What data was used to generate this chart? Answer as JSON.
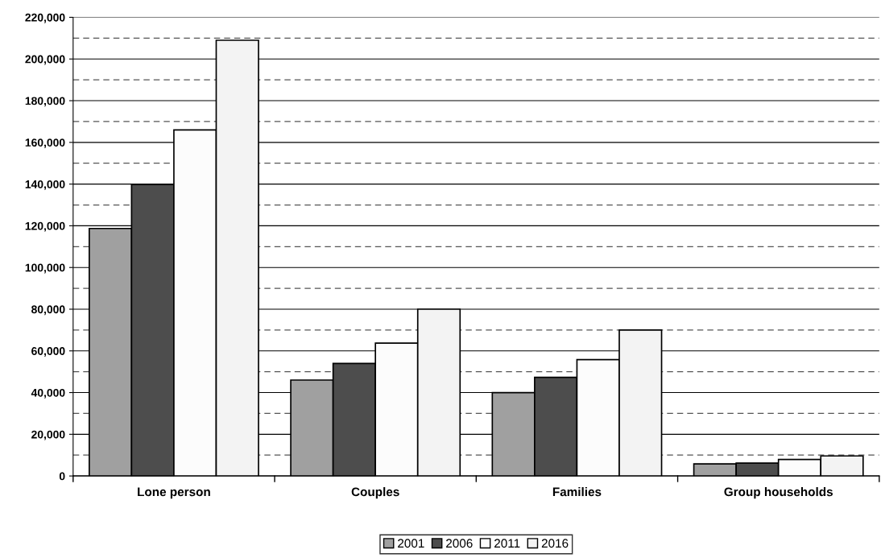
{
  "chart_data": {
    "type": "bar",
    "categories": [
      "Lone person",
      "Couples",
      "Families",
      "Group households"
    ],
    "series": [
      {
        "name": "2001",
        "color": "#a0a0a0",
        "values": [
          118700,
          46000,
          40000,
          5800
        ]
      },
      {
        "name": "2006",
        "color": "#4d4d4d",
        "values": [
          139800,
          54000,
          47300,
          6200
        ]
      },
      {
        "name": "2011",
        "color": "#fcfcfc",
        "values": [
          166000,
          63700,
          55800,
          7900
        ]
      },
      {
        "name": "2016",
        "color": "#f3f3f3",
        "values": [
          209000,
          80000,
          70000,
          9600
        ]
      }
    ],
    "ylim": [
      0,
      220000
    ],
    "yticks": [
      {
        "value": 0,
        "label": "0"
      },
      {
        "value": 20000,
        "label": "20,000"
      },
      {
        "value": 40000,
        "label": "40,000"
      },
      {
        "value": 60000,
        "label": "60,000"
      },
      {
        "value": 80000,
        "label": "80,000"
      },
      {
        "value": 100000,
        "label": "100,000"
      },
      {
        "value": 120000,
        "label": "120,000"
      },
      {
        "value": 140000,
        "label": "140,000"
      },
      {
        "value": 160000,
        "label": "160,000"
      },
      {
        "value": 180000,
        "label": "180,000"
      },
      {
        "value": 200000,
        "label": "200,000"
      },
      {
        "value": 220000,
        "label": "220,000"
      }
    ],
    "ref_lines": [
      {
        "axis": "y",
        "value": 10000,
        "line_style": "dashed",
        "color": "#555555"
      },
      {
        "axis": "y",
        "value": 30000,
        "line_style": "dashed",
        "color": "#555555"
      },
      {
        "axis": "y",
        "value": 50000,
        "line_style": "dashed",
        "color": "#555555"
      },
      {
        "axis": "y",
        "value": 70000,
        "line_style": "dashed",
        "color": "#555555"
      },
      {
        "axis": "y",
        "value": 90000,
        "line_style": "dashed",
        "color": "#555555"
      },
      {
        "axis": "y",
        "value": 110000,
        "line_style": "dashed",
        "color": "#555555"
      },
      {
        "axis": "y",
        "value": 130000,
        "line_style": "dashed",
        "color": "#555555"
      },
      {
        "axis": "y",
        "value": 150000,
        "line_style": "dashed",
        "color": "#555555"
      },
      {
        "axis": "y",
        "value": 170000,
        "line_style": "dashed",
        "color": "#555555"
      },
      {
        "axis": "y",
        "value": 190000,
        "line_style": "dashed",
        "color": "#555555"
      },
      {
        "axis": "y",
        "value": 210000,
        "line_style": "dashed",
        "color": "#555555"
      }
    ],
    "grid": "y",
    "legend": "bottom"
  }
}
